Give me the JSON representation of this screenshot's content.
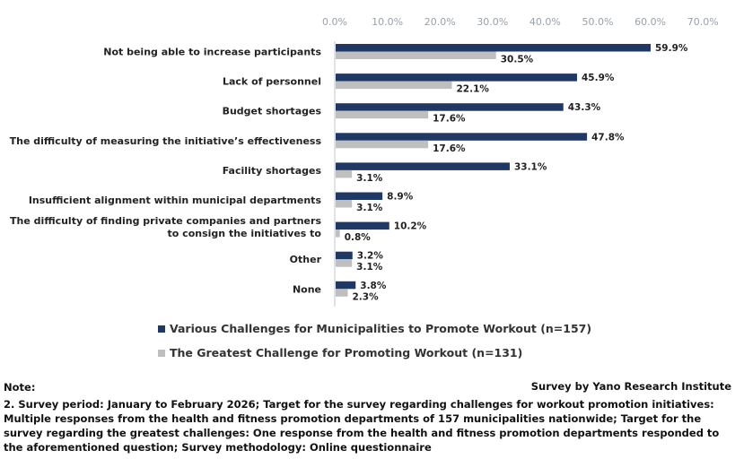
{
  "chart_data": {
    "type": "bar",
    "orientation": "horizontal",
    "xlim": [
      0,
      70
    ],
    "ticks": [
      "0.0%",
      "10.0%",
      "20.0%",
      "30.0%",
      "40.0%",
      "50.0%",
      "60.0%",
      "70.0%"
    ],
    "categories": [
      [
        "Not being able to increase participants"
      ],
      [
        "Lack of personnel"
      ],
      [
        "Budget shortages"
      ],
      [
        "The difficulty of measuring the initiative’s effectiveness"
      ],
      [
        "Facility shortages"
      ],
      [
        "Insufficient alignment within municipal departments"
      ],
      [
        "The difficulty of finding private companies and partners",
        "to consign the initiatives to"
      ],
      [
        "Other"
      ],
      [
        "None"
      ]
    ],
    "series": [
      {
        "name": "Various Challenges for Municipalities to Promote Workout (n=157)",
        "color": "#1f3864",
        "values": [
          59.9,
          45.9,
          43.3,
          47.8,
          33.1,
          8.9,
          10.2,
          3.2,
          3.8
        ],
        "labels": [
          "59.9%",
          "45.9%",
          "43.3%",
          "47.8%",
          "33.1%",
          "8.9%",
          "10.2%",
          "3.2%",
          "3.8%"
        ]
      },
      {
        "name": "The Greatest Challenge for Promoting Workout (n=131)",
        "color": "#bfbfbf",
        "values": [
          30.5,
          22.1,
          17.6,
          17.6,
          3.1,
          3.1,
          0.8,
          3.1,
          2.3
        ],
        "labels": [
          "30.5%",
          "22.1%",
          "17.6%",
          "17.6%",
          "3.1%",
          "3.1%",
          "0.8%",
          "3.1%",
          "2.3%"
        ]
      }
    ],
    "legend_position": "bottom"
  },
  "note": {
    "title": "Note:",
    "source": "Survey by Yano Research Institute",
    "text": "2. Survey period: January to February 2026; Target for the survey regarding challenges for workout promotion initiatives: Multiple responses from the health and fitness promotion departments of 157 municipalities nationwide; Target for the survey regarding the greatest challenges: One response from the health and fitness promotion departments responded to the aforementioned question; Survey methodology: Online questionnaire"
  }
}
